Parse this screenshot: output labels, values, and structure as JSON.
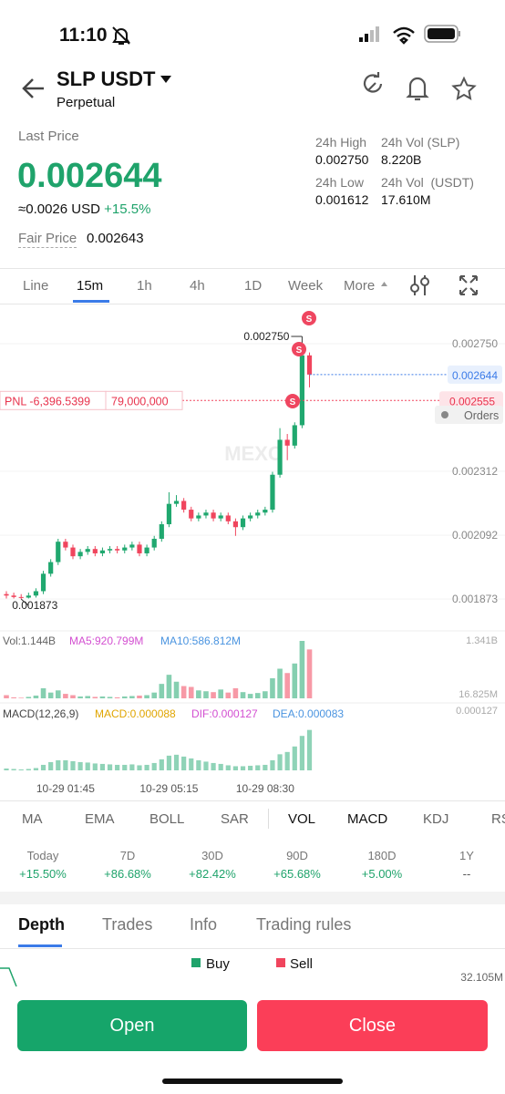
{
  "status_bar": {
    "time": "11:10"
  },
  "header": {
    "symbol": "SLP USDT",
    "contract": "Perpetual"
  },
  "price": {
    "label": "Last Price",
    "value": "0.002644",
    "usd": "≈0.0026 USD",
    "change": "+15.5%",
    "fair_label": "Fair Price",
    "fair_value": "0.002643"
  },
  "stats": [
    {
      "label": "24h High",
      "value": "0.002750"
    },
    {
      "label": "24h Vol (SLP)",
      "value": "8.220B"
    },
    {
      "label": "24h Low",
      "value": "0.001612"
    },
    {
      "label": "24h Vol  (USDT)",
      "value": "17.610M"
    }
  ],
  "intervals": [
    "Line",
    "15m",
    "1h",
    "4h",
    "1D",
    "Week",
    "More"
  ],
  "chart_data": {
    "type": "candlestick",
    "categories": [
      null,
      null,
      null,
      null,
      null,
      null,
      null,
      null,
      "10-29 01:45",
      null,
      null,
      null,
      null,
      null,
      null,
      null,
      null,
      null,
      null,
      null,
      null,
      null,
      "10-29 05:15",
      null,
      null,
      null,
      null,
      null,
      null,
      null,
      null,
      null,
      null,
      null,
      null,
      "10-29 08:30",
      null,
      null,
      null,
      null,
      null,
      null
    ],
    "open": [
      0.00189,
      0.001885,
      0.00188,
      0.001878,
      0.001885,
      0.0019,
      0.00196,
      0.002,
      0.00207,
      0.00205,
      0.00202,
      0.002035,
      0.002045,
      0.00203,
      0.00204,
      0.002045,
      0.00204,
      0.00205,
      0.00206,
      0.00203,
      0.00205,
      0.00208,
      0.00213,
      0.0022,
      0.00221,
      0.00218,
      0.00215,
      0.00216,
      0.00217,
      0.00215,
      0.00216,
      0.00214,
      0.00212,
      0.00215,
      0.00216,
      0.00217,
      0.00218,
      0.0023,
      0.00242,
      0.0024,
      0.00247,
      0.00271
    ],
    "high": [
      0.0019,
      0.001895,
      0.00189,
      0.001895,
      0.00191,
      0.00197,
      0.00201,
      0.00208,
      0.00208,
      0.00206,
      0.002045,
      0.002055,
      0.002055,
      0.00205,
      0.002055,
      0.002055,
      0.00206,
      0.00207,
      0.00207,
      0.00206,
      0.00209,
      0.00214,
      0.00224,
      0.00223,
      0.00222,
      0.00219,
      0.00217,
      0.00218,
      0.00218,
      0.00217,
      0.00217,
      0.00215,
      0.00216,
      0.00217,
      0.00218,
      0.00219,
      0.00231,
      0.00246,
      0.00244,
      0.00248,
      0.00275,
      0.00272
    ],
    "low": [
      0.001875,
      0.001875,
      0.001873,
      0.001875,
      0.001878,
      0.00189,
      0.00195,
      0.00199,
      0.00204,
      0.00201,
      0.00201,
      0.002025,
      0.00202,
      0.00202,
      0.00203,
      0.00203,
      0.00203,
      0.00204,
      0.00202,
      0.00202,
      0.00204,
      0.00207,
      0.00212,
      0.00219,
      0.00217,
      0.00214,
      0.00214,
      0.00215,
      0.00214,
      0.00214,
      0.00213,
      0.00209,
      0.00211,
      0.00214,
      0.00215,
      0.00216,
      0.00217,
      0.00229,
      0.00235,
      0.00239,
      0.00246,
      0.0026
    ],
    "close": [
      0.001885,
      0.00188,
      0.001878,
      0.001885,
      0.0019,
      0.00196,
      0.002,
      0.00207,
      0.00205,
      0.00202,
      0.002035,
      0.002045,
      0.00203,
      0.00204,
      0.002045,
      0.00204,
      0.00205,
      0.00206,
      0.00203,
      0.00205,
      0.00208,
      0.00213,
      0.0022,
      0.00221,
      0.00218,
      0.00215,
      0.00216,
      0.00217,
      0.00215,
      0.00216,
      0.00214,
      0.00212,
      0.00215,
      0.00216,
      0.00217,
      0.00218,
      0.0023,
      0.00242,
      0.0024,
      0.00247,
      0.00271,
      0.002644
    ],
    "up_color": "#20a86f",
    "down_color": "#f0455d",
    "ylim": [
      0.00177,
      0.00288
    ],
    "yticks": [
      {
        "value": 0.00275,
        "label": "0.002750"
      },
      {
        "value": 0.002312,
        "label": "0.002312"
      },
      {
        "value": 0.002092,
        "label": "0.002092"
      },
      {
        "value": 0.001873,
        "label": "0.001873"
      }
    ],
    "grid": true,
    "annotations": {
      "high": "0.002750",
      "low": "0.001873"
    },
    "price_line": {
      "value": 0.002644,
      "label": "0.002644"
    },
    "position": {
      "pnl": "PNL -6,396.5399",
      "size": "79,000,000",
      "line": {
        "value": 0.002555,
        "label": "0.002555"
      }
    },
    "orders": "Orders",
    "markers": [
      "S",
      "S",
      "S"
    ],
    "watermark": "MEXC",
    "volume": {
      "label": "Vol:1.144B",
      "ma5": "MA5:920.799M",
      "ma10": "MA10:586.812M",
      "values": [
        90000000,
        40000000,
        30000000,
        50000000,
        80000000,
        250000000,
        150000000,
        200000000,
        120000000,
        90000000,
        60000000,
        70000000,
        50000000,
        60000000,
        50000000,
        40000000,
        60000000,
        70000000,
        80000000,
        90000000,
        150000000,
        350000000,
        560000000,
        400000000,
        300000000,
        280000000,
        200000000,
        180000000,
        160000000,
        220000000,
        150000000,
        250000000,
        160000000,
        120000000,
        140000000,
        180000000,
        480000000,
        700000000,
        600000000,
        820000000,
        1341000000,
        1144000000
      ],
      "ylim": [
        16825000,
        1341000000
      ],
      "yticks": [
        {
          "value": 1341000000,
          "label": "1.341B"
        },
        {
          "value": 16825000,
          "label": "16.825M"
        }
      ]
    },
    "macd": {
      "label": "MACD(12,26,9)",
      "macd": "MACD:0.000088",
      "dif": "DIF:0.000127",
      "dea": "DEA:0.000083",
      "values": [
        4e-06,
        3e-06,
        2e-06,
        3e-06,
        5e-06,
        1.2e-05,
        1.8e-05,
        2.2e-05,
        2.2e-05,
        2e-05,
        1.8e-05,
        1.7e-05,
        1.5e-05,
        1.4e-05,
        1.3e-05,
        1.2e-05,
        1.2e-05,
        1.3e-05,
        1.1e-05,
        1.2e-05,
        1.6e-05,
        2.4e-05,
        3.2e-05,
        3.4e-05,
        3e-05,
        2.6e-05,
        2.2e-05,
        1.9e-05,
        1.6e-05,
        1.4e-05,
        1.1e-05,
        9e-06,
        9e-06,
        1e-05,
        1.1e-05,
        1.2e-05,
        2.2e-05,
        3.5e-05,
        4e-05,
        5.2e-05,
        7.5e-05,
        8.8e-05
      ],
      "ylim": [
        0,
        0.000127
      ],
      "yticks": [
        0.000127
      ]
    }
  },
  "indicators": [
    "MA",
    "EMA",
    "BOLL",
    "SAR",
    "VOL",
    "MACD",
    "KDJ",
    "RS"
  ],
  "performance": [
    {
      "period": "Today",
      "change": "+15.50%"
    },
    {
      "period": "7D",
      "change": "+86.68%"
    },
    {
      "period": "30D",
      "change": "+82.42%"
    },
    {
      "period": "90D",
      "change": "+65.68%"
    },
    {
      "period": "180D",
      "change": "+5.00%"
    },
    {
      "period": "1Y",
      "change": "--"
    }
  ],
  "tabs": [
    "Depth",
    "Trades",
    "Info",
    "Trading rules"
  ],
  "depth": {
    "buy": "Buy",
    "sell": "Sell",
    "max": "32.105M"
  },
  "buttons": {
    "open": "Open",
    "close": "Close"
  }
}
